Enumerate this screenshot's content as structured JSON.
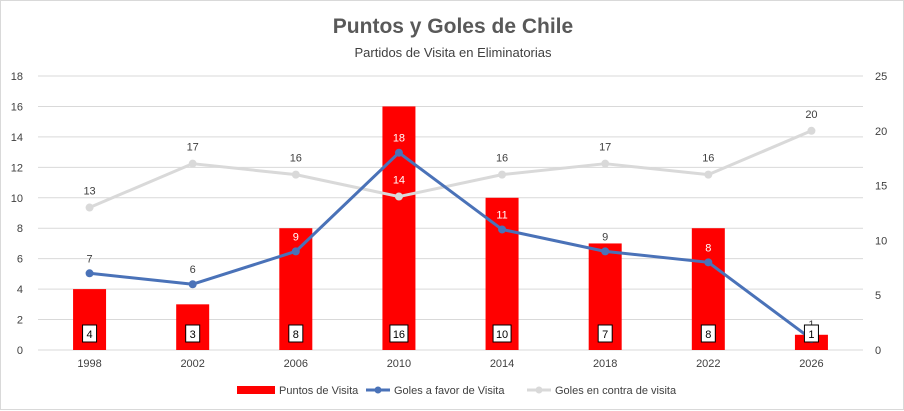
{
  "chart_data": {
    "type": "bar",
    "title": "Puntos y Goles de Chile",
    "subtitle": "Partidos de Visita en Eliminatorias",
    "categories": [
      "1998",
      "2002",
      "2006",
      "2010",
      "2014",
      "2018",
      "2022",
      "2026"
    ],
    "series": [
      {
        "name": "Puntos de Visita",
        "type": "bar",
        "axis": "left",
        "color": "#ff0000",
        "values": [
          4,
          3,
          8,
          16,
          10,
          7,
          8,
          1
        ]
      },
      {
        "name": "Goles a favor de Visita",
        "type": "line",
        "axis": "right",
        "color": "#4a72b8",
        "values": [
          7,
          6,
          9,
          18,
          11,
          9,
          8,
          1
        ]
      },
      {
        "name": "Goles en contra de visita",
        "type": "line",
        "axis": "right",
        "color": "#d9d9d9",
        "values": [
          13,
          17,
          16,
          14,
          16,
          17,
          16,
          20
        ]
      }
    ],
    "y_left": {
      "min": 0,
      "max": 18,
      "ticks": [
        "0",
        "2",
        "4",
        "6",
        "8",
        "10",
        "12",
        "14",
        "16",
        "18"
      ]
    },
    "y_right": {
      "min": 0,
      "max": 25,
      "ticks": [
        "0",
        "5",
        "10",
        "15",
        "20",
        "25"
      ]
    },
    "grid": true,
    "legend_position": "bottom"
  }
}
